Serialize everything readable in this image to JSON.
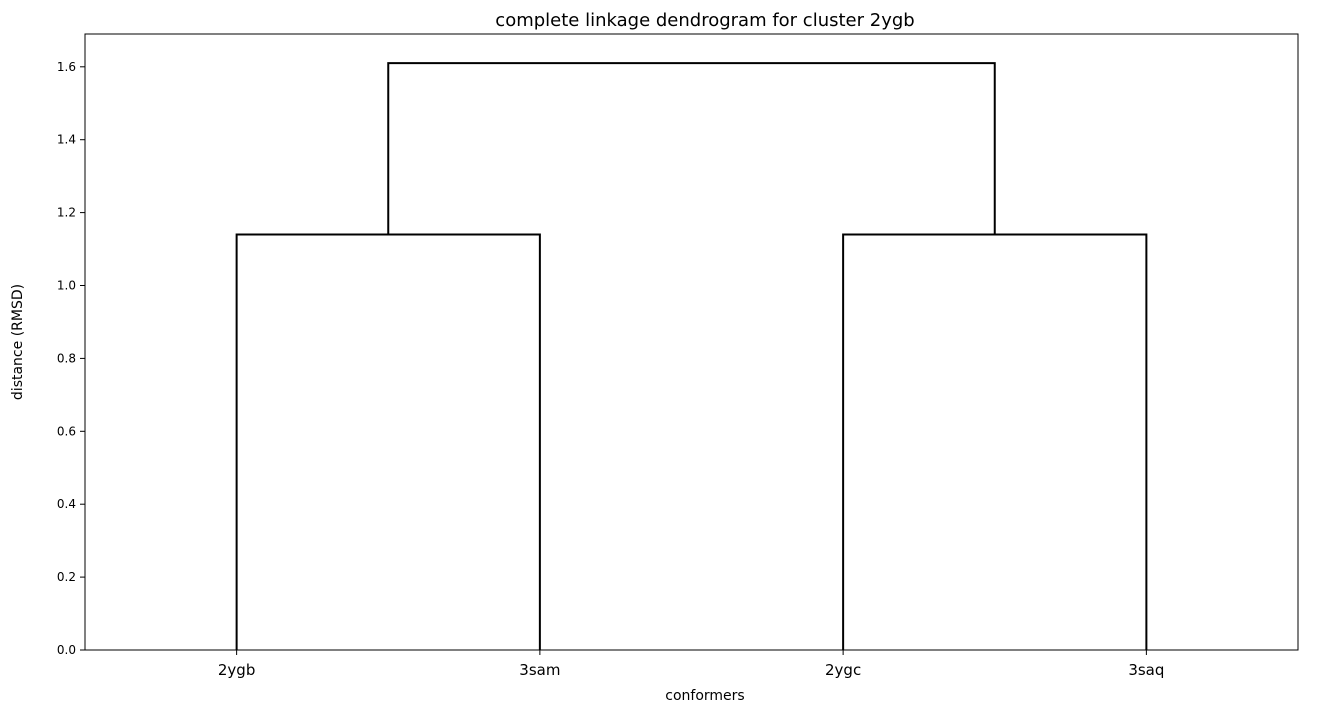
{
  "chart_data": {
    "type": "dendrogram",
    "title": "complete linkage dendrogram for cluster 2ygb",
    "xlabel": "conformers",
    "ylabel": "distance (RMSD)",
    "leaves": [
      "2ygb",
      "3sam",
      "2ygc",
      "3saq"
    ],
    "merges": [
      {
        "left": "2ygb",
        "right": "3sam",
        "height": 1.14
      },
      {
        "left": "2ygc",
        "right": "3saq",
        "height": 1.14
      },
      {
        "left": "2ygb+3sam",
        "right": "2ygc+3saq",
        "height": 1.61
      }
    ],
    "yticks": [
      "0.0",
      "0.2",
      "0.4",
      "0.6",
      "0.8",
      "1.0",
      "1.2",
      "1.4",
      "1.6"
    ],
    "ylim": [
      0,
      1.69
    ],
    "grid": false,
    "link_color": "#000000"
  }
}
